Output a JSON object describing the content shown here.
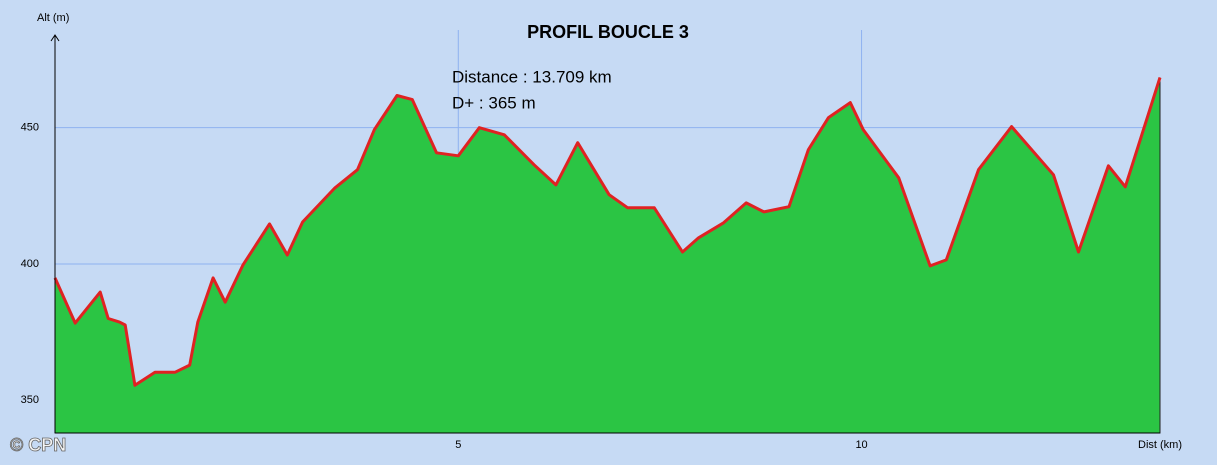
{
  "chart_data": {
    "type": "area",
    "title": "PROFIL BOUCLE 3",
    "annotations": [
      "Distance : 13.709 km",
      "D+ : 365 m"
    ],
    "y_label": "Alt (m)",
    "x_label": "Dist (km)",
    "watermark": "© CPN",
    "xlim": [
      0,
      13.7
    ],
    "ylim": [
      338,
      484
    ],
    "xticks": [
      5,
      10
    ],
    "yticks": [
      350,
      400,
      450
    ],
    "grid": true,
    "series": [
      {
        "name": "Altitude",
        "color": "#e02222",
        "fill": "#2bc544",
        "x": [
          0,
          0.25,
          0.56,
          0.66,
          0.8,
          0.87,
          0.99,
          1.24,
          1.49,
          1.67,
          1.77,
          1.96,
          2.11,
          2.33,
          2.66,
          2.88,
          3.07,
          3.47,
          3.75,
          3.96,
          4.24,
          4.43,
          4.73,
          5.0,
          5.26,
          5.57,
          5.94,
          6.21,
          6.48,
          6.87,
          7.1,
          7.43,
          7.78,
          7.98,
          8.29,
          8.57,
          8.79,
          9.1,
          9.34,
          9.59,
          9.86,
          10.02,
          10.46,
          10.85,
          11.05,
          11.45,
          11.86,
          12.38,
          12.69,
          13.06,
          13.27,
          13.7
        ],
        "values": [
          394.9,
          378.3,
          389.7,
          380,
          378.7,
          377.6,
          355.5,
          360.3,
          360.3,
          362.9,
          378.7,
          394.9,
          386,
          399.6,
          414.7,
          403.3,
          415.4,
          427.9,
          434.6,
          449.3,
          461.8,
          460.3,
          440.8,
          439.7,
          450,
          447.4,
          436.4,
          429,
          444.5,
          425.4,
          420.6,
          420.6,
          404.4,
          409.6,
          415.1,
          422.4,
          419.1,
          421,
          441.9,
          453.7,
          459.2,
          449.3,
          431.6,
          399.3,
          401.5,
          434.6,
          450.4,
          432.7,
          404.4,
          436,
          428.3,
          468.4
        ]
      }
    ]
  }
}
